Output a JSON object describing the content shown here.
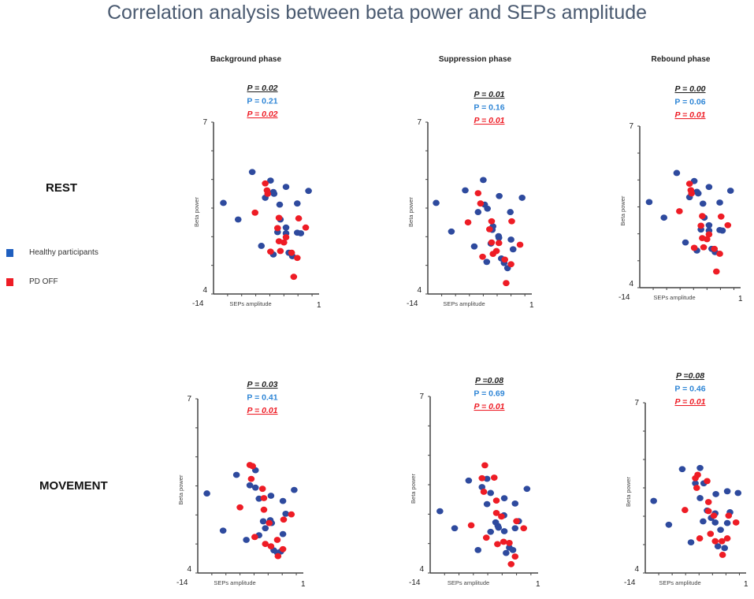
{
  "title": "Correlation analysis between beta power and SEPs amplitude",
  "rows": [
    "REST",
    "MOVEMENT"
  ],
  "columns": [
    "Background phase",
    "Suppression phase",
    "Rebound phase"
  ],
  "legend": [
    {
      "label": "Healthy participants",
      "color": "#1f5fbf"
    },
    {
      "label": "PD OFF",
      "color": "#ee1c25"
    }
  ],
  "colors": {
    "healthy_points": "#2e4a9e",
    "pd_points": "#ee1c25",
    "p_all": "#222222",
    "p_healthy": "#2f86d6",
    "p_pd": "#ee1c25"
  },
  "chart_data": [
    {
      "type": "scatter",
      "row": "REST",
      "title": "Background phase",
      "xlabel": "SEPs amplitude",
      "ylabel": "Beta power",
      "xlim": [
        -14,
        1
      ],
      "ylim": [
        4,
        7
      ],
      "x_tick_labels": [
        "-14",
        "1"
      ],
      "y_tick_labels": [
        "4",
        "7"
      ],
      "p_values": {
        "all": "P = 0.02",
        "healthy": "P = 0.21",
        "pd": "P = 0.02"
      },
      "series": [
        {
          "name": "Healthy participants",
          "points": [
            [
              -8.5,
              6.13
            ],
            [
              -12.6,
              5.59
            ],
            [
              -10.5,
              5.3
            ],
            [
              -5.9,
              5.98
            ],
            [
              -5.5,
              5.78
            ],
            [
              -5.4,
              5.75
            ],
            [
              -6.65,
              5.68
            ],
            [
              -3.7,
              5.87
            ],
            [
              -0.5,
              5.8
            ],
            [
              -4.6,
              5.56
            ],
            [
              -2.1,
              5.58
            ],
            [
              -4.5,
              5.3
            ],
            [
              -3.7,
              5.16
            ],
            [
              -4.9,
              5.08
            ],
            [
              -3.7,
              5.06
            ],
            [
              -2.1,
              5.07
            ],
            [
              -1.6,
              5.06
            ],
            [
              -7.2,
              4.84
            ],
            [
              -5.5,
              4.69
            ],
            [
              -3.3,
              4.72
            ],
            [
              -2.8,
              4.66
            ]
          ]
        },
        {
          "name": "PD OFF",
          "points": [
            [
              -6.65,
              5.93
            ],
            [
              -6.4,
              5.81
            ],
            [
              -6.3,
              5.75
            ],
            [
              -8.1,
              5.42
            ],
            [
              -4.7,
              5.33
            ],
            [
              -1.9,
              5.32
            ],
            [
              -4.9,
              5.15
            ],
            [
              -0.9,
              5.16
            ],
            [
              -3.7,
              4.99
            ],
            [
              -4.7,
              4.92
            ],
            [
              -4.0,
              4.9
            ],
            [
              -5.9,
              4.74
            ],
            [
              -4.5,
              4.75
            ],
            [
              -2.9,
              4.72
            ],
            [
              -2.1,
              4.63
            ],
            [
              -2.6,
              4.3
            ]
          ]
        }
      ]
    },
    {
      "type": "scatter",
      "row": "REST",
      "title": "Suppression phase",
      "xlabel": "SEPs amplitude",
      "ylabel": "Beta power",
      "xlim": [
        -14,
        1
      ],
      "ylim": [
        4,
        7
      ],
      "x_tick_labels": [
        "-14",
        "1"
      ],
      "y_tick_labels": [
        "4",
        "7"
      ],
      "p_values": {
        "all": "P = 0.01",
        "healthy": "P = 0.16",
        "pd": "P = 0.01"
      },
      "series": [
        {
          "name": "Healthy participants",
          "points": [
            [
              -12.8,
              5.59
            ],
            [
              -10.6,
              5.09
            ],
            [
              -8.6,
              5.81
            ],
            [
              -6.0,
              5.99
            ],
            [
              -5.8,
              5.56
            ],
            [
              -5.4,
              5.49
            ],
            [
              -6.75,
              5.43
            ],
            [
              -3.7,
              5.71
            ],
            [
              -0.4,
              5.68
            ],
            [
              -2.1,
              5.43
            ],
            [
              -4.6,
              5.18
            ],
            [
              -4.7,
              5.12
            ],
            [
              -3.8,
              5.01
            ],
            [
              -3.75,
              4.98
            ],
            [
              -4.9,
              4.88
            ],
            [
              -2.0,
              4.95
            ],
            [
              -1.7,
              4.78
            ],
            [
              -7.3,
              4.83
            ],
            [
              -5.5,
              4.56
            ],
            [
              -3.4,
              4.62
            ],
            [
              -3.0,
              4.54
            ],
            [
              -2.5,
              4.45
            ]
          ]
        },
        {
          "name": "PD OFF",
          "points": [
            [
              -6.75,
              5.76
            ],
            [
              -6.4,
              5.58
            ],
            [
              -8.2,
              5.25
            ],
            [
              -4.8,
              5.27
            ],
            [
              -5.1,
              5.13
            ],
            [
              -1.9,
              5.27
            ],
            [
              -4.8,
              4.9
            ],
            [
              -3.75,
              4.89
            ],
            [
              -0.7,
              4.86
            ],
            [
              -4.1,
              4.75
            ],
            [
              -4.6,
              4.7
            ],
            [
              -6.1,
              4.65
            ],
            [
              -2.9,
              4.6
            ],
            [
              -2.0,
              4.52
            ],
            [
              -2.7,
              4.19
            ]
          ]
        }
      ]
    },
    {
      "type": "scatter",
      "row": "REST",
      "title": "Rebound phase",
      "xlabel": "SEPs amplitude",
      "ylabel": "Beta power",
      "xlim": [
        -14,
        1
      ],
      "ylim": [
        4,
        7
      ],
      "x_tick_labels": [
        "-14",
        "1"
      ],
      "y_tick_labels": [
        "4",
        "7"
      ],
      "p_values": {
        "all": "P = 0.00",
        "healthy": "P = 0.06",
        "pd": "P = 0.01"
      },
      "series": [
        {
          "name": "Healthy participants",
          "points": [
            [
              -8.5,
              6.13
            ],
            [
              -12.6,
              5.59
            ],
            [
              -10.4,
              5.3
            ],
            [
              -5.9,
              5.98
            ],
            [
              -5.5,
              5.78
            ],
            [
              -5.3,
              5.75
            ],
            [
              -6.6,
              5.68
            ],
            [
              -3.7,
              5.87
            ],
            [
              -0.5,
              5.8
            ],
            [
              -4.6,
              5.56
            ],
            [
              -2.1,
              5.58
            ],
            [
              -4.4,
              5.3
            ],
            [
              -3.7,
              5.16
            ],
            [
              -4.9,
              5.08
            ],
            [
              -3.7,
              5.06
            ],
            [
              -2.1,
              5.07
            ],
            [
              -1.7,
              5.06
            ],
            [
              -7.2,
              4.84
            ],
            [
              -5.5,
              4.69
            ],
            [
              -3.3,
              4.72
            ],
            [
              -2.8,
              4.66
            ]
          ]
        },
        {
          "name": "PD OFF",
          "points": [
            [
              -6.6,
              5.93
            ],
            [
              -6.4,
              5.81
            ],
            [
              -6.3,
              5.75
            ],
            [
              -8.1,
              5.42
            ],
            [
              -4.7,
              5.33
            ],
            [
              -1.9,
              5.32
            ],
            [
              -4.9,
              5.15
            ],
            [
              -0.9,
              5.16
            ],
            [
              -3.7,
              4.99
            ],
            [
              -4.7,
              4.92
            ],
            [
              -4.0,
              4.9
            ],
            [
              -5.9,
              4.74
            ],
            [
              -4.5,
              4.75
            ],
            [
              -2.9,
              4.72
            ],
            [
              -2.1,
              4.63
            ],
            [
              -2.6,
              4.3
            ]
          ]
        }
      ]
    },
    {
      "type": "scatter",
      "row": "MOVEMENT",
      "title": "Background phase",
      "xlabel": "SEPs amplitude",
      "ylabel": "Beta power",
      "xlim": [
        -14,
        1
      ],
      "ylim": [
        4,
        7
      ],
      "x_tick_labels": [
        "-14",
        "1"
      ],
      "y_tick_labels": [
        "4",
        "7"
      ],
      "p_values": {
        "all": "P = 0.03",
        "healthy": "P = 0.41",
        "pd": "P = 0.01"
      },
      "series": [
        {
          "name": "Healthy participants",
          "points": [
            [
              -12.7,
              5.37
            ],
            [
              -10.4,
              4.73
            ],
            [
              -8.5,
              5.69
            ],
            [
              -5.8,
              5.77
            ],
            [
              -6.6,
              5.51
            ],
            [
              -5.8,
              5.47
            ],
            [
              -5.3,
              5.28
            ],
            [
              -3.6,
              5.33
            ],
            [
              -0.3,
              5.43
            ],
            [
              -1.9,
              5.24
            ],
            [
              -1.5,
              5.02
            ],
            [
              -4.7,
              4.89
            ],
            [
              -3.7,
              4.91
            ],
            [
              -3.5,
              4.86
            ],
            [
              -4.4,
              4.77
            ],
            [
              -1.9,
              4.67
            ],
            [
              -7.1,
              4.57
            ],
            [
              -5.3,
              4.65
            ],
            [
              -3.2,
              4.39
            ],
            [
              -2.7,
              4.35
            ],
            [
              -2.2,
              4.37
            ]
          ]
        },
        {
          "name": "PD OFF",
          "points": [
            [
              -6.6,
              5.86
            ],
            [
              -6.2,
              5.84
            ],
            [
              -6.4,
              5.62
            ],
            [
              -4.8,
              5.45
            ],
            [
              -4.6,
              5.29
            ],
            [
              -8.0,
              5.13
            ],
            [
              -4.6,
              5.09
            ],
            [
              -0.7,
              5.01
            ],
            [
              -1.8,
              4.92
            ],
            [
              -3.85,
              4.86
            ],
            [
              -5.9,
              4.62
            ],
            [
              -2.7,
              4.57
            ],
            [
              -4.4,
              4.5
            ],
            [
              -3.6,
              4.46
            ],
            [
              -1.9,
              4.41
            ],
            [
              -2.6,
              4.29
            ]
          ]
        }
      ]
    },
    {
      "type": "scatter",
      "row": "MOVEMENT",
      "title": "Suppression phase",
      "xlabel": "SEPs amplitude",
      "ylabel": "Beta power",
      "xlim": [
        -14,
        1
      ],
      "ylim": [
        4,
        7
      ],
      "x_tick_labels": [
        "-14",
        "1"
      ],
      "y_tick_labels": [
        "4",
        "7"
      ],
      "p_values": {
        "all": "P =0.08",
        "healthy": "P = 0.69",
        "pd": "P = 0.01"
      },
      "series": [
        {
          "name": "Healthy participants",
          "points": [
            [
              -12.65,
              5.05
            ],
            [
              -10.6,
              4.76
            ],
            [
              -8.65,
              5.57
            ],
            [
              -6.8,
              5.46
            ],
            [
              -6.1,
              5.6
            ],
            [
              -5.6,
              5.36
            ],
            [
              -6.1,
              5.17
            ],
            [
              -3.7,
              5.27
            ],
            [
              -0.55,
              5.43
            ],
            [
              -2.2,
              5.18
            ],
            [
              -3.75,
              4.98
            ],
            [
              -4.9,
              4.86
            ],
            [
              -4.6,
              4.8
            ],
            [
              -4.5,
              4.77
            ],
            [
              -5.6,
              4.7
            ],
            [
              -3.7,
              4.71
            ],
            [
              -2.2,
              4.76
            ],
            [
              -1.7,
              4.88
            ],
            [
              -7.35,
              4.39
            ],
            [
              -3.45,
              4.34
            ],
            [
              -3.0,
              4.43
            ],
            [
              -2.5,
              4.39
            ]
          ]
        },
        {
          "name": "PD OFF",
          "points": [
            [
              -6.4,
              5.83
            ],
            [
              -6.8,
              5.61
            ],
            [
              -5.1,
              5.62
            ],
            [
              -6.55,
              5.38
            ],
            [
              -4.8,
              5.23
            ],
            [
              -4.8,
              5.02
            ],
            [
              -4.1,
              4.96
            ],
            [
              -2.0,
              4.88
            ],
            [
              -1.0,
              4.76
            ],
            [
              -8.3,
              4.81
            ],
            [
              -6.2,
              4.6
            ],
            [
              -4.65,
              4.49
            ],
            [
              -3.8,
              4.53
            ],
            [
              -3.0,
              4.51
            ],
            [
              -2.2,
              4.28
            ],
            [
              -2.75,
              4.15
            ]
          ]
        }
      ]
    },
    {
      "type": "scatter",
      "row": "MOVEMENT",
      "title": "Rebound phase",
      "xlabel": "SEPs amplitude",
      "ylabel": "Beta power",
      "xlim": [
        -14,
        1
      ],
      "ylim": [
        4,
        7
      ],
      "x_tick_labels": [
        "-14",
        "1"
      ],
      "y_tick_labels": [
        "4",
        "7"
      ],
      "p_values": {
        "all": "P =0.08",
        "healthy": "P = 0.46",
        "pd": "P = 0.01"
      },
      "series": [
        {
          "name": "Healthy participants",
          "points": [
            [
              -12.75,
              5.27
            ],
            [
              -10.5,
              4.85
            ],
            [
              -8.5,
              5.83
            ],
            [
              -5.85,
              5.85
            ],
            [
              -6.55,
              5.58
            ],
            [
              -5.3,
              5.58
            ],
            [
              -5.85,
              5.32
            ],
            [
              -3.5,
              5.39
            ],
            [
              -1.8,
              5.44
            ],
            [
              -0.2,
              5.41
            ],
            [
              -4.8,
              5.1
            ],
            [
              -4.2,
              4.97
            ],
            [
              -3.6,
              5.05
            ],
            [
              -5.4,
              4.91
            ],
            [
              -3.6,
              4.89
            ],
            [
              -2.8,
              4.76
            ],
            [
              -1.8,
              4.88
            ],
            [
              -1.4,
              5.07
            ],
            [
              -7.2,
              4.54
            ],
            [
              -3.2,
              4.47
            ],
            [
              -2.2,
              4.44
            ]
          ]
        },
        {
          "name": "PD OFF",
          "points": [
            [
              -6.55,
              5.67
            ],
            [
              -6.2,
              5.73
            ],
            [
              -6.35,
              5.5
            ],
            [
              -4.8,
              5.62
            ],
            [
              -4.6,
              5.25
            ],
            [
              -8.1,
              5.11
            ],
            [
              -4.6,
              5.09
            ],
            [
              -3.8,
              5.01
            ],
            [
              -1.6,
              5.01
            ],
            [
              -0.5,
              4.89
            ],
            [
              -5.9,
              4.61
            ],
            [
              -4.3,
              4.69
            ],
            [
              -3.6,
              4.56
            ],
            [
              -2.6,
              4.56
            ],
            [
              -1.8,
              4.61
            ],
            [
              -2.5,
              4.32
            ]
          ]
        }
      ]
    }
  ]
}
